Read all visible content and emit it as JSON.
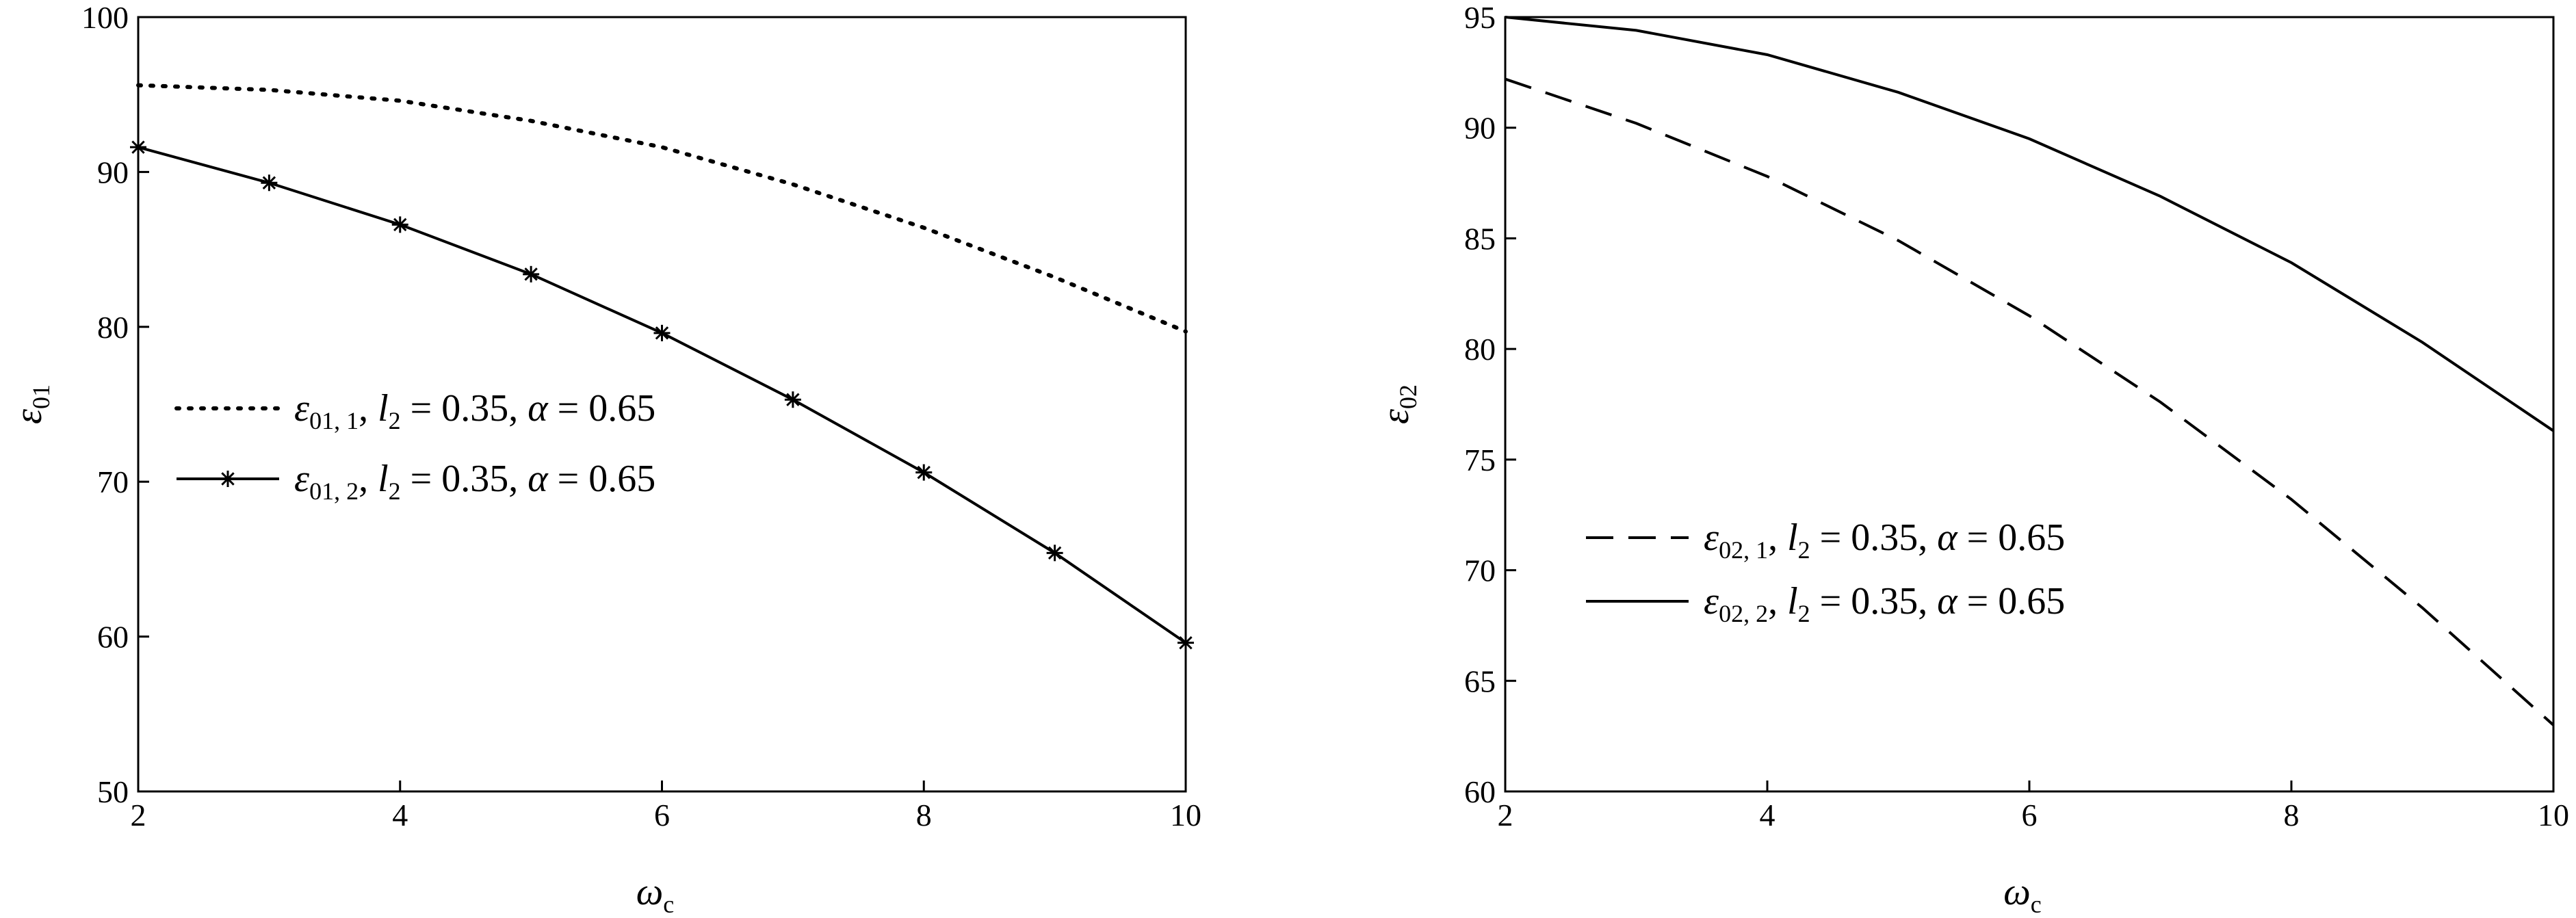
{
  "chart_data": [
    {
      "type": "line",
      "x": [
        2,
        3,
        4,
        5,
        6,
        7,
        8,
        9,
        10
      ],
      "xlim": [
        2,
        10
      ],
      "ylim": [
        50,
        100
      ],
      "xticks": [
        "2",
        "4",
        "6",
        "8",
        "10"
      ],
      "yticks": [
        "50",
        "60",
        "70",
        "80",
        "90",
        "100"
      ],
      "xlabel": {
        "sym": "ω",
        "sub": "c"
      },
      "ylabel": {
        "sym": "ε",
        "sub": "01"
      },
      "grid": false,
      "legend_position": "middle-left",
      "series": [
        {
          "legend": {
            "sym": "ε",
            "sub": "01, 1",
            "rest": ", ",
            "l": "l",
            "lsub": "2",
            "eq1": " = 0.35, ",
            "a": "α",
            "eq2": " = 0.65"
          },
          "values": [
            95.6,
            95.3,
            94.6,
            93.3,
            91.6,
            89.2,
            86.4,
            83.2,
            79.7
          ],
          "style": "dotted",
          "marker": "none"
        },
        {
          "legend": {
            "sym": "ε",
            "sub": "01, 2",
            "rest": ", ",
            "l": "l",
            "lsub": "2",
            "eq1": " = 0.35, ",
            "a": "α",
            "eq2": " = 0.65"
          },
          "values": [
            91.6,
            89.3,
            86.6,
            83.4,
            79.6,
            75.3,
            70.6,
            65.4,
            59.6
          ],
          "style": "solid",
          "marker": "asterisk"
        }
      ]
    },
    {
      "type": "line",
      "x": [
        2,
        3,
        4,
        5,
        6,
        7,
        8,
        9,
        10
      ],
      "xlim": [
        2,
        10
      ],
      "ylim": [
        60,
        95
      ],
      "xticks": [
        "2",
        "4",
        "6",
        "8",
        "10"
      ],
      "yticks": [
        "60",
        "65",
        "70",
        "75",
        "80",
        "85",
        "90",
        "95"
      ],
      "xlabel": {
        "sym": "ω",
        "sub": "c"
      },
      "ylabel": {
        "sym": "ε",
        "sub": "02"
      },
      "grid": false,
      "legend_position": "lower-left",
      "series": [
        {
          "legend": {
            "sym": "ε",
            "sub": "02, 1",
            "rest": ", ",
            "l": "l",
            "lsub": "2",
            "eq1": " = 0.35, ",
            "a": "α",
            "eq2": " = 0.65"
          },
          "values": [
            92.2,
            90.2,
            87.8,
            84.9,
            81.5,
            77.6,
            73.2,
            68.3,
            63.0
          ],
          "style": "dashed",
          "marker": "none"
        },
        {
          "legend": {
            "sym": "ε",
            "sub": "02, 2",
            "rest": ", ",
            "l": "l",
            "lsub": "2",
            "eq1": " = 0.35, ",
            "a": "α",
            "eq2": " = 0.65"
          },
          "values": [
            95.0,
            94.4,
            93.3,
            91.6,
            89.5,
            86.9,
            83.9,
            80.3,
            76.3
          ],
          "style": "solid",
          "marker": "none"
        }
      ]
    }
  ]
}
